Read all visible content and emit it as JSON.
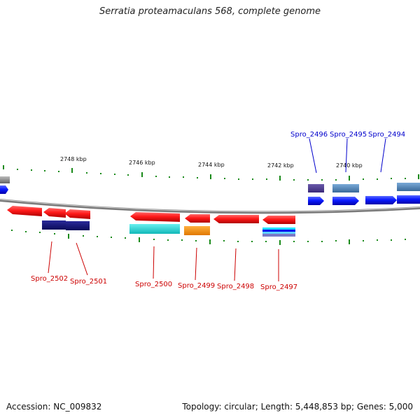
{
  "title": "Serratia proteamaculans 568, complete genome",
  "footer": {
    "accession": "Accession: NC_009832",
    "summary": "Topology: circular; Length: 5,448,853 bp; Genes: 5,000"
  },
  "scale_labels": [
    "2748 kbp",
    "2746 kbp",
    "2744 kbp",
    "2742 kbp",
    "2740 kbp"
  ],
  "gene_labels": [
    "Spro_2496",
    "Spro_2495",
    "Spro_2494",
    "Spro_2502",
    "Spro_2501",
    "Spro_2500",
    "Spro_2499",
    "Spro_2498",
    "Spro_2497"
  ],
  "colors": {
    "reverse_strand_label": "#cc0000",
    "forward_strand_label": "#0000cc",
    "tick": "#1a8a1a",
    "backbone": "#888888"
  }
}
